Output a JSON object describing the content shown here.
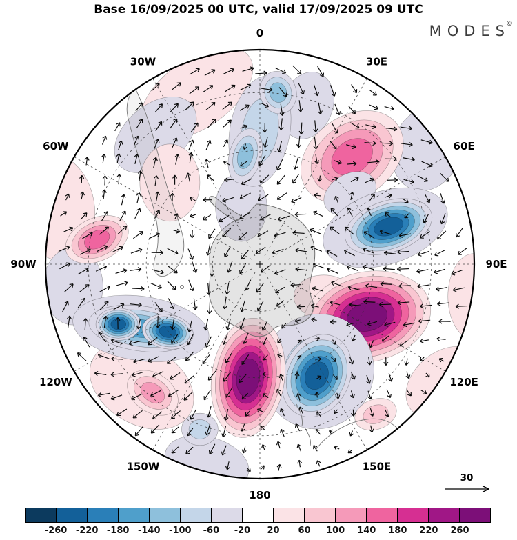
{
  "title": "Base 16/09/2025 00 UTC, valid 17/09/2025 09 UTC",
  "brand": {
    "name": "MODES",
    "mark": "©"
  },
  "chart_data": {
    "type": "heatmap",
    "subtype": "filled-contour-anomaly-map-with-wind-vectors",
    "projection": "south-polar-stereographic",
    "title": "Base 16/09/2025 00 UTC, valid 17/09/2025 09 UTC",
    "meridian_labels": [
      {
        "label": "0",
        "angle_deg": 0
      },
      {
        "label": "30E",
        "angle_deg": 30
      },
      {
        "label": "60E",
        "angle_deg": 60
      },
      {
        "label": "90E",
        "angle_deg": 90
      },
      {
        "label": "120E",
        "angle_deg": 120
      },
      {
        "label": "150E",
        "angle_deg": 150
      },
      {
        "label": "180",
        "angle_deg": 180
      },
      {
        "label": "150W",
        "angle_deg": 210
      },
      {
        "label": "120W",
        "angle_deg": 240
      },
      {
        "label": "90W",
        "angle_deg": 270
      },
      {
        "label": "60W",
        "angle_deg": 300
      },
      {
        "label": "30W",
        "angle_deg": 330
      }
    ],
    "latitude_circles_r": [
      0.22,
      0.53,
      0.8
    ],
    "colorbar": {
      "boundaries": [
        -260,
        -220,
        -180,
        -140,
        -100,
        -60,
        -20,
        20,
        60,
        100,
        140,
        180,
        220,
        260
      ],
      "colors": [
        "#0c3a5e",
        "#136099",
        "#2a7fb8",
        "#4f9fcb",
        "#8ec0dc",
        "#c4d6e9",
        "#dcdae8",
        "#ffffff",
        "#fbe3e6",
        "#f9c6d1",
        "#f59ab9",
        "#ef649f",
        "#d62f92",
        "#a01786",
        "#7c0f78"
      ]
    },
    "wind_reference": {
      "value": "30"
    },
    "coords_normalized_to_radius": true,
    "anomaly_centers": [
      {
        "x": -0.295,
        "y": -0.795,
        "rx": 0.3,
        "ry": 0.16,
        "rot": -35,
        "value": 40
      },
      {
        "x": -0.487,
        "y": -0.603,
        "rx": 0.22,
        "ry": 0.14,
        "rot": -40,
        "value": -40
      },
      {
        "x": 0.22,
        "y": -0.74,
        "rx": 0.12,
        "ry": 0.16,
        "rot": 20,
        "value": -40
      },
      {
        "x": 0.779,
        "y": -0.538,
        "rx": 0.16,
        "ry": 0.2,
        "rot": 20,
        "value": -40
      },
      {
        "x": -0.952,
        "y": -0.266,
        "rx": 0.18,
        "ry": 0.25,
        "rot": -10,
        "value": 40
      },
      {
        "x": -0.872,
        "y": 0.103,
        "rx": 0.14,
        "ry": 0.18,
        "rot": 0,
        "value": -40
      },
      {
        "x": -0.247,
        "y": 0.926,
        "rx": 0.2,
        "ry": 0.12,
        "rot": 15,
        "value": -40
      },
      {
        "x": 0.859,
        "y": 0.551,
        "rx": 0.2,
        "ry": 0.14,
        "rot": -40,
        "value": 40
      },
      {
        "x": 0.997,
        "y": 0.151,
        "rx": 0.12,
        "ry": 0.2,
        "rot": 0,
        "value": 40
      },
      {
        "x": 0.298,
        "y": 0.151,
        "rx": 0.14,
        "ry": 0.1,
        "rot": 0,
        "value": 40
      },
      {
        "x": -0.087,
        "y": -0.266,
        "rx": 0.12,
        "ry": 0.16,
        "rot": 0,
        "value": -40
      },
      {
        "x": -0.551,
        "y": 0.567,
        "rx": 0.26,
        "ry": 0.18,
        "rot": 30,
        "value": 40
      },
      {
        "x": -0.42,
        "y": -0.38,
        "rx": 0.14,
        "ry": 0.18,
        "rot": 0,
        "value": 40
      },
      {
        "x": 0.43,
        "y": -0.5,
        "rx": 0.26,
        "ry": 0.19,
        "rot": -35,
        "value": 140
      },
      {
        "x": 0.42,
        "y": -0.33,
        "rx": 0.13,
        "ry": 0.09,
        "rot": -30,
        "value": -60
      },
      {
        "x": 0.585,
        "y": -0.17,
        "rx": 0.3,
        "ry": 0.17,
        "rot": -18,
        "value": -100
      },
      {
        "x": 0.6,
        "y": -0.175,
        "rx": 0.21,
        "ry": 0.12,
        "rot": -18,
        "value": -260
      },
      {
        "x": 0.5,
        "y": 0.246,
        "rx": 0.3,
        "ry": 0.21,
        "rot": -12,
        "value": 270
      },
      {
        "x": 0.27,
        "y": 0.5,
        "rx": 0.26,
        "ry": 0.27,
        "rot": 25,
        "value": -100
      },
      {
        "x": 0.265,
        "y": 0.52,
        "rx": 0.155,
        "ry": 0.2,
        "rot": 25,
        "value": -230
      },
      {
        "x": -0.555,
        "y": 0.3,
        "rx": 0.32,
        "ry": 0.15,
        "rot": 8,
        "value": -100
      },
      {
        "x": -0.555,
        "y": 0.3,
        "rx": 0.245,
        "ry": 0.105,
        "rot": 8,
        "value": -160
      },
      {
        "x": -0.66,
        "y": 0.28,
        "rx": 0.105,
        "ry": 0.075,
        "rot": 0,
        "value": -230
      },
      {
        "x": -0.43,
        "y": 0.315,
        "rx": 0.12,
        "ry": 0.08,
        "rot": 10,
        "value": -230
      },
      {
        "x": -0.28,
        "y": 0.77,
        "rx": 0.085,
        "ry": 0.075,
        "rot": 0,
        "value": -100
      },
      {
        "x": -0.055,
        "y": 0.53,
        "rx": 0.17,
        "ry": 0.28,
        "rot": 8,
        "value": 270
      },
      {
        "x": 0.0,
        "y": -0.62,
        "rx": 0.14,
        "ry": 0.26,
        "rot": 10,
        "value": -100
      },
      {
        "x": -0.068,
        "y": -0.505,
        "rx": 0.075,
        "ry": 0.13,
        "rot": 15,
        "value": -120
      },
      {
        "x": 0.085,
        "y": -0.8,
        "rx": 0.085,
        "ry": 0.1,
        "rot": -15,
        "value": -140
      },
      {
        "x": -0.76,
        "y": -0.115,
        "rx": 0.155,
        "ry": 0.1,
        "rot": -25,
        "value": 140
      },
      {
        "x": -0.5,
        "y": 0.6,
        "rx": 0.13,
        "ry": 0.09,
        "rot": 35,
        "value": 100
      },
      {
        "x": 0.54,
        "y": 0.7,
        "rx": 0.1,
        "ry": 0.07,
        "rot": -20,
        "value": 60
      }
    ]
  }
}
